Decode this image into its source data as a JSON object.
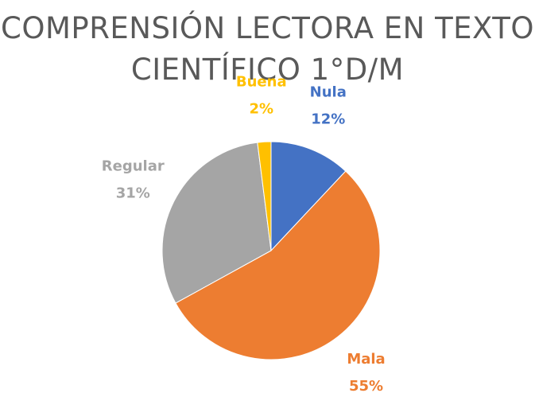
{
  "chart_data": {
    "type": "pie",
    "title": "COMPRENSIÓN LECTORA EN TEXTO CIENTÍFICO 1°D/M",
    "categories": [
      "Nula",
      "Mala",
      "Regular",
      "Buena"
    ],
    "values": [
      12,
      55,
      31,
      2
    ],
    "value_labels": [
      "12%",
      "55%",
      "31%",
      "2%"
    ],
    "colors": [
      "#4472c4",
      "#ed7d31",
      "#a5a5a5",
      "#ffc000"
    ]
  }
}
